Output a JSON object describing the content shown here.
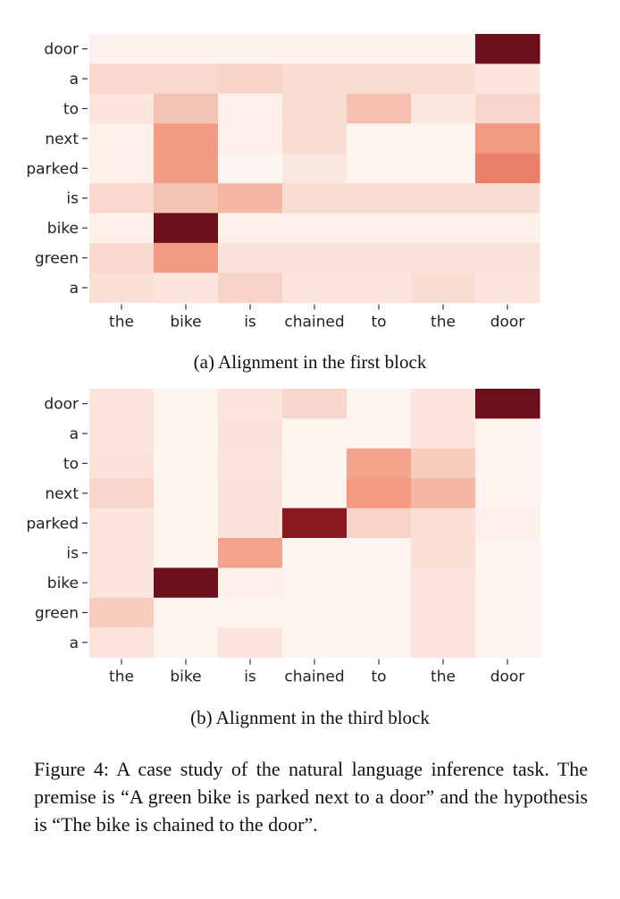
{
  "chart_data": [
    {
      "type": "heatmap",
      "caption": "(a) Alignment in the first block",
      "x_labels": [
        "the",
        "bike",
        "is",
        "chained",
        "to",
        "the",
        "door"
      ],
      "y_labels": [
        "door",
        "a",
        "to",
        "next",
        "parked",
        "is",
        "bike",
        "green",
        "a"
      ],
      "cell_colors": [
        [
          "#fdf2ee",
          "#fdf2ee",
          "#fdf2ee",
          "#fdf2ee",
          "#fdf2ee",
          "#fdf2ee",
          "#6b0f1a"
        ],
        [
          "#f9d9cf",
          "#f9d9cf",
          "#f8d3c8",
          "#f9dcd2",
          "#f9dcd2",
          "#f9dcd2",
          "#fbe5dd"
        ],
        [
          "#fbe5dd",
          "#f5c3b4",
          "#fdf0eb",
          "#f9dcd2",
          "#f5c0b0",
          "#fbe7e0",
          "#f8d5ca"
        ],
        [
          "#fdf0eb",
          "#f39a82",
          "#fdf0eb",
          "#f9dcd2",
          "#fdf3ef",
          "#fdf3ef",
          "#f39a82"
        ],
        [
          "#fdf0eb",
          "#f39a82",
          "#fdf5f2",
          "#fbe7e0",
          "#fdf3ef",
          "#fdf3ef",
          "#e8806a"
        ],
        [
          "#f9d9cf",
          "#f5c3b4",
          "#f5b6a3",
          "#f9dcd2",
          "#f9dcd2",
          "#f9dcd2",
          "#f9dcd2"
        ],
        [
          "#fdf0eb",
          "#6b0f1a",
          "#fdf0eb",
          "#fdf0eb",
          "#fdf0eb",
          "#fdf0eb",
          "#fdf0eb"
        ],
        [
          "#f9d9cf",
          "#f39a82",
          "#fbe2da",
          "#fbe2da",
          "#fbe2da",
          "#fbe2da",
          "#fbe2da"
        ],
        [
          "#fbe0d7",
          "#fbe5dd",
          "#f8d3c8",
          "#fbe5dd",
          "#fbe5dd",
          "#f9dcd2",
          "#fbe5dd"
        ]
      ]
    },
    {
      "type": "heatmap",
      "caption": "(b) Alignment in the third block",
      "x_labels": [
        "the",
        "bike",
        "is",
        "chained",
        "to",
        "the",
        "door"
      ],
      "y_labels": [
        "door",
        "a",
        "to",
        "next",
        "parked",
        "is",
        "bike",
        "green",
        "a"
      ],
      "cell_colors": [
        [
          "#fbe5dd",
          "#fdf3ef",
          "#fbe5dd",
          "#f9d6cb",
          "#fdf3ef",
          "#fbe5dd",
          "#6b0f1a"
        ],
        [
          "#fbe5dd",
          "#fdf3ef",
          "#fbe2da",
          "#fdf3ef",
          "#fdf3ef",
          "#fbe5dd",
          "#fdf3ef"
        ],
        [
          "#fbe2da",
          "#fdf3ef",
          "#fbe5dd",
          "#fdf3ef",
          "#f5a48c",
          "#f7cdc0",
          "#fdf3ef"
        ],
        [
          "#f9d6cb",
          "#fdf3ef",
          "#fbe2da",
          "#fdf3ef",
          "#f49a80",
          "#f5b6a3",
          "#fdf3ef"
        ],
        [
          "#fbe5dd",
          "#fdf3ef",
          "#fbe2da",
          "#8a1820",
          "#f8d3c8",
          "#fbe0d7",
          "#fdf0eb"
        ],
        [
          "#fbe5dd",
          "#fdf3ef",
          "#f4a38b",
          "#fdf3ef",
          "#fdf3ef",
          "#fbe0d7",
          "#fdf3ef"
        ],
        [
          "#fbe5dd",
          "#6b0f1a",
          "#fdf0eb",
          "#fdf3ef",
          "#fdf3ef",
          "#fbe5dd",
          "#fdf3ef"
        ],
        [
          "#f7cdc0",
          "#fdf3ef",
          "#fdf3ef",
          "#fdf3ef",
          "#fdf3ef",
          "#fbe5dd",
          "#fdf3ef"
        ],
        [
          "#fbe5dd",
          "#fdf3ef",
          "#fbe5dd",
          "#fdf3ef",
          "#fdf3ef",
          "#fbe5dd",
          "#fdf3ef"
        ]
      ]
    }
  ],
  "figure_caption": "Figure 4:  A case study of the natural language inference task. The premise is “A green bike is parked next to a door” and the hypothesis is “The bike is chained to the door”."
}
